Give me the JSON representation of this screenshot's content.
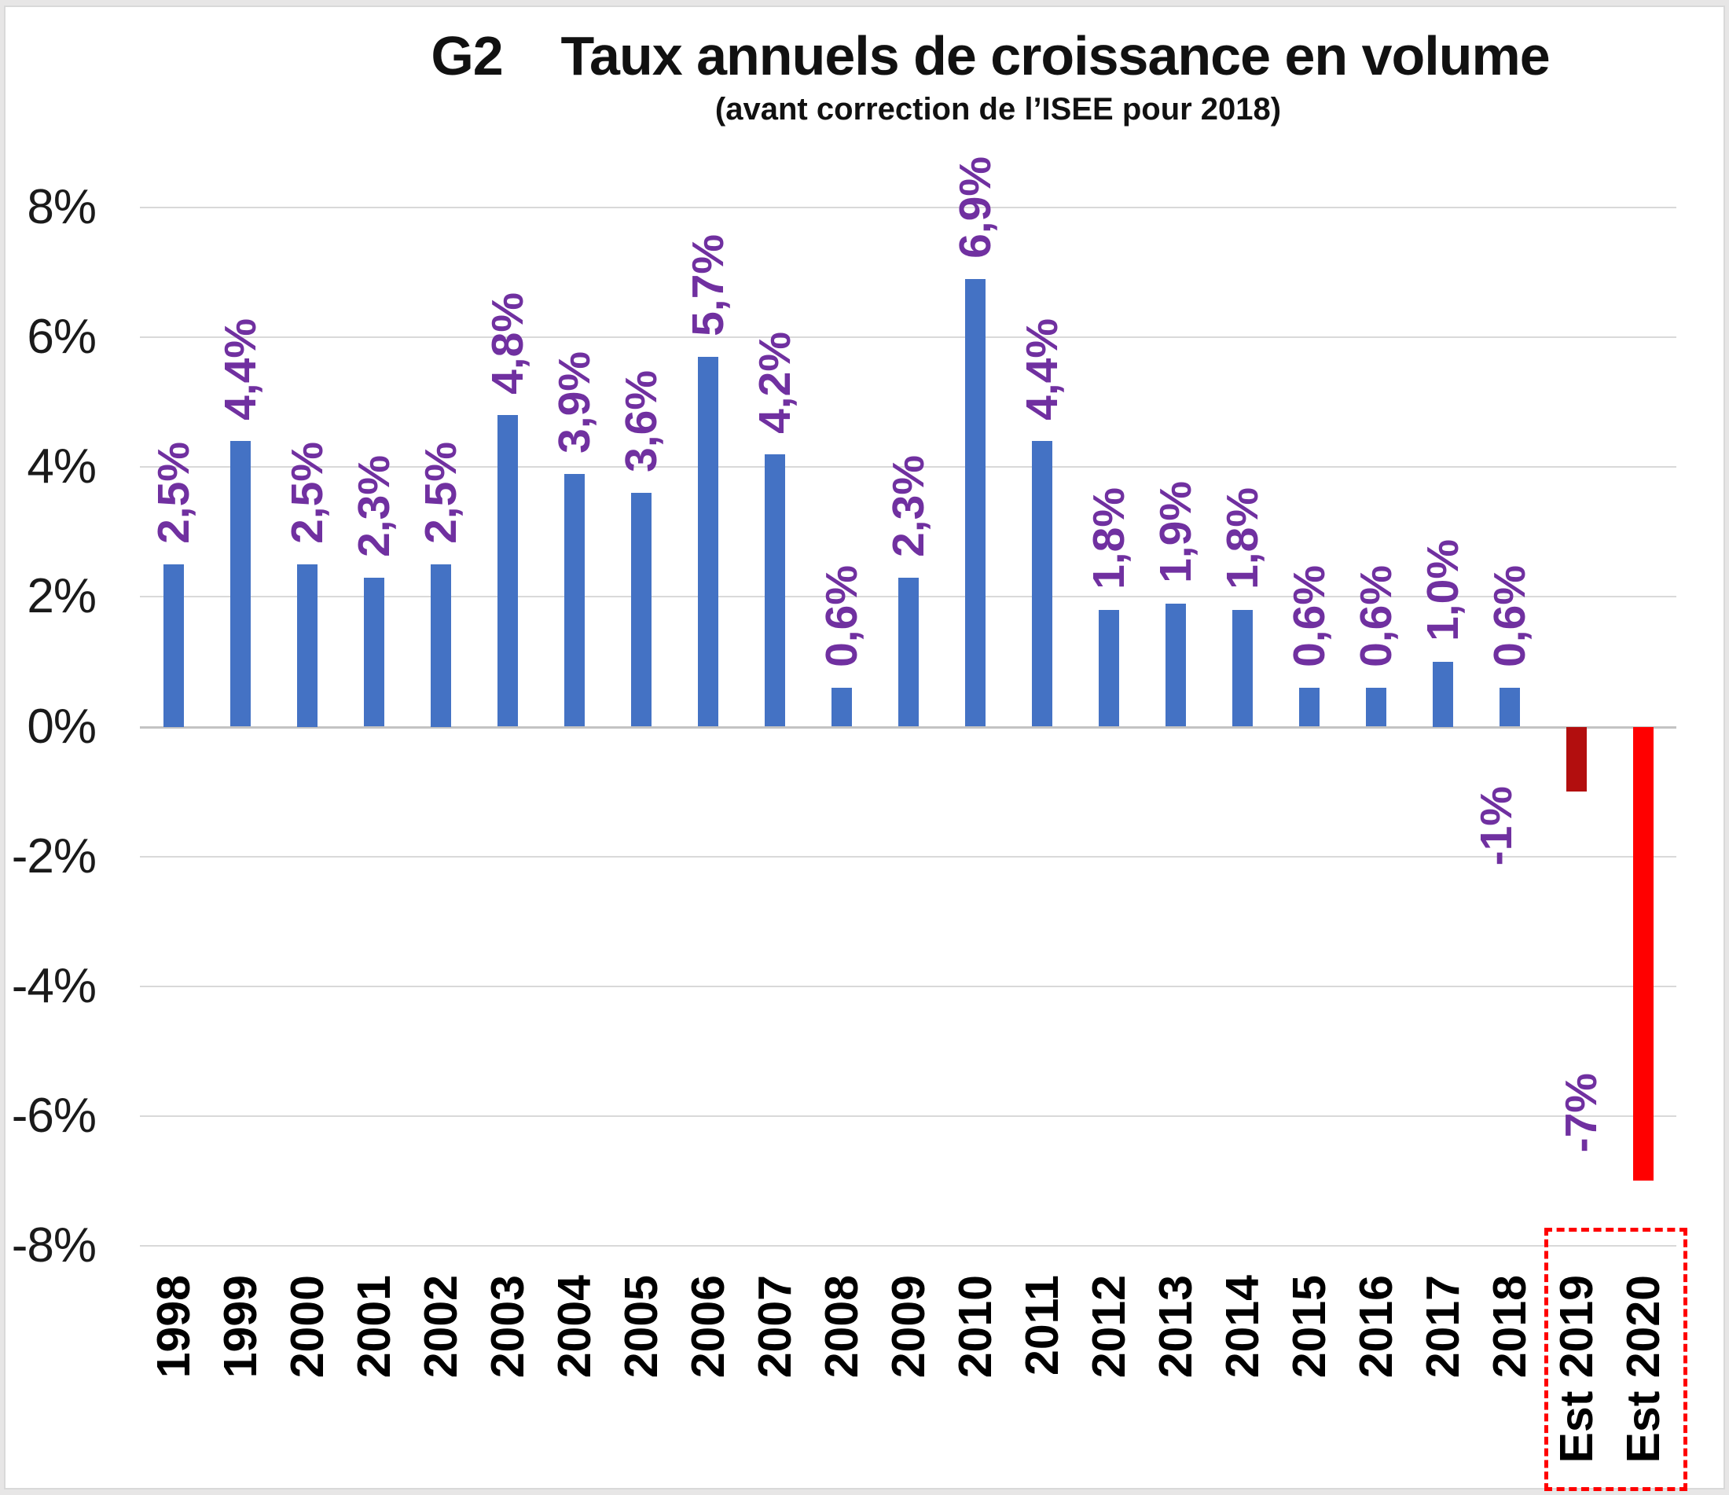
{
  "header": {
    "title": "G2    Taux annuels de croissance en volume",
    "subtitle": "(avant correction de l’ISEE pour 2018)"
  },
  "chart_data": {
    "type": "bar",
    "title": "G2    Taux annuels de croissance en volume",
    "subtitle": "(avant correction de l’ISEE pour 2018)",
    "categories": [
      "1998",
      "1999",
      "2000",
      "2001",
      "2002",
      "2003",
      "2004",
      "2005",
      "2006",
      "2007",
      "2008",
      "2009",
      "2010",
      "2011",
      "2012",
      "2013",
      "2014",
      "2015",
      "2016",
      "2017",
      "2018",
      "Est 2019",
      "Est 2020"
    ],
    "values": [
      2.5,
      4.4,
      2.5,
      2.3,
      2.5,
      4.8,
      3.9,
      3.6,
      5.7,
      4.2,
      0.6,
      2.3,
      6.9,
      4.4,
      1.8,
      1.9,
      1.8,
      0.6,
      0.6,
      1.0,
      0.6,
      -1,
      -7
    ],
    "data_labels": [
      "2,5%",
      "4,4%",
      "2,5%",
      "2,3%",
      "2,5%",
      "4,8%",
      "3,9%",
      "3,6%",
      "5,7%",
      "4,2%",
      "0,6%",
      "2,3%",
      "6,9%",
      "4,4%",
      "1,8%",
      "1,9%",
      "1,8%",
      "0,6%",
      "0,6%",
      "1,0%",
      "0,6%",
      "-1%",
      "-7%"
    ],
    "data_label_color": "#7030A0",
    "bar_color_default": "#4472C4",
    "bar_color_overrides": {
      "Est 2019": "#B20E0E",
      "Est 2020": "#FF0000"
    },
    "y_axis": {
      "min": -8,
      "max": 8,
      "step": 2,
      "tick_labels": [
        "8%",
        "6%",
        "4%",
        "2%",
        "0%",
        "-2%",
        "-4%",
        "-6%",
        "-8%"
      ]
    },
    "grid": true,
    "legend": "none",
    "estimate_highlight": {
      "categories": [
        "Est 2019",
        "Est 2020"
      ],
      "box_color": "#FF0000"
    }
  }
}
